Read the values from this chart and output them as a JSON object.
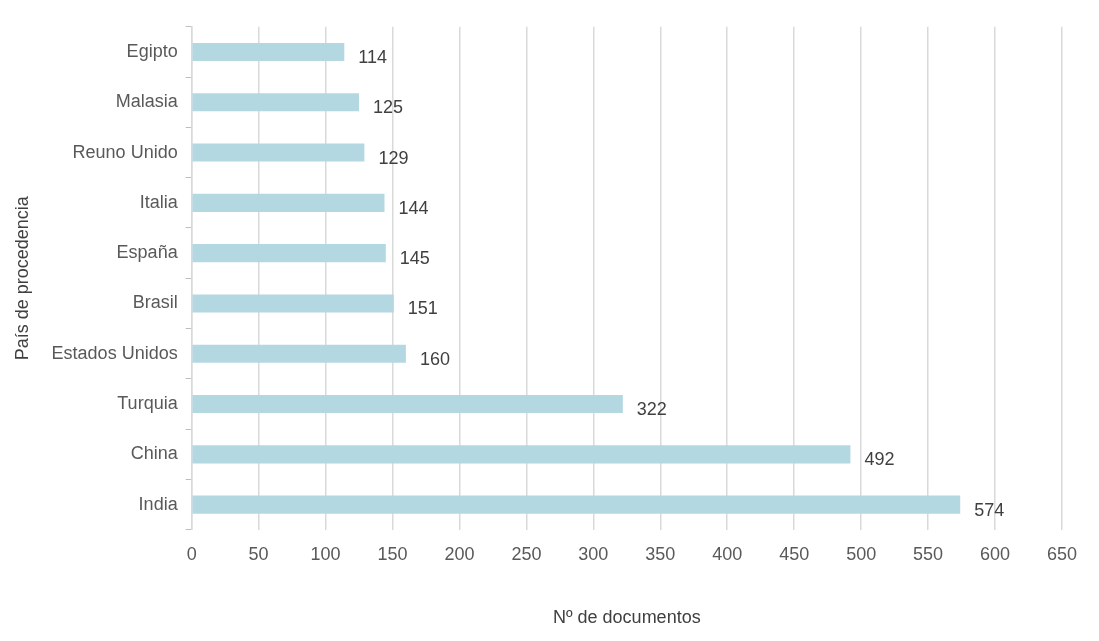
{
  "chart_data": {
    "type": "bar",
    "orientation": "horizontal",
    "categories": [
      "Egipto",
      "Malasia",
      "Reuno Unido",
      "Italia",
      "España",
      "Brasil",
      "Estados Unidos",
      "Turquia",
      "China",
      "India"
    ],
    "values": [
      114,
      125,
      129,
      144,
      145,
      151,
      160,
      322,
      492,
      574
    ],
    "color": "#b4d8e2",
    "xlim": [
      0,
      650
    ],
    "xticks": [
      0,
      50,
      100,
      150,
      200,
      250,
      300,
      350,
      400,
      450,
      500,
      550,
      600,
      650
    ],
    "grid": "x",
    "data_labels": true,
    "xlabel": "Nº de documentos",
    "ylabel": "País de procedencia"
  }
}
